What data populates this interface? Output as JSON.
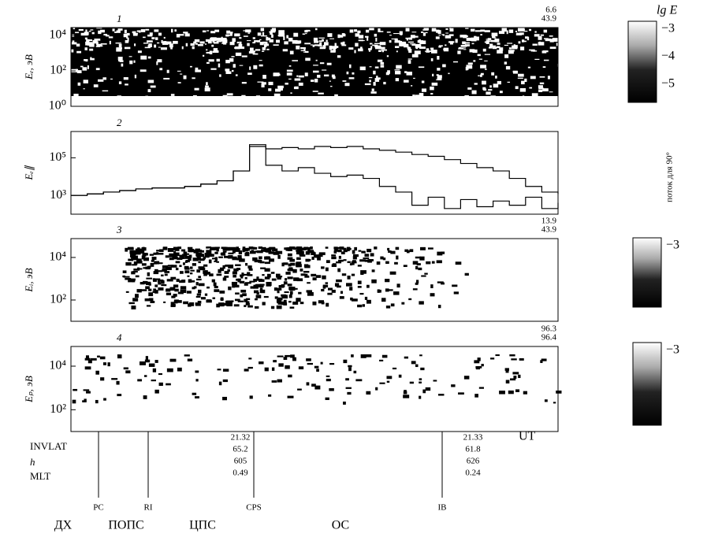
{
  "figure": {
    "panels": [
      {
        "number": "1",
        "ylabel": "Eₑ, эВ",
        "corner": [
          "6.6",
          "43.9"
        ],
        "log": true,
        "ylim": [
          1,
          28000
        ],
        "yticks": [
          {
            "value": 10000,
            "label": "10⁴"
          },
          {
            "value": 100,
            "label": "10²"
          },
          {
            "value": 1,
            "label": "10⁰"
          }
        ]
      },
      {
        "number": "2",
        "ylabel": "Eₑ∥",
        "log": true,
        "ylim": [
          100,
          2500000
        ],
        "yticks": [
          {
            "value": 100000,
            "label": "10⁵"
          },
          {
            "value": 1000,
            "label": "10³"
          }
        ],
        "series": [
          {
            "color": "#000000",
            "values": [
              1000,
              1200,
              1500,
              1800,
              2200,
              2500,
              2500,
              3000,
              4000,
              6000,
              20000,
              500000,
              300000,
              350000,
              300000,
              400000,
              350000,
              400000,
              300000,
              250000,
              200000,
              150000,
              120000,
              80000,
              50000,
              30000,
              20000,
              8000,
              3000,
              1500,
              1200
            ]
          },
          {
            "color": "#000000",
            "values": [
              1000,
              1200,
              1500,
              1800,
              2200,
              2500,
              2500,
              3000,
              4000,
              6000,
              20000,
              400000,
              40000,
              20000,
              30000,
              15000,
              10000,
              12000,
              8000,
              3000,
              1500,
              300,
              800,
              200,
              600,
              250,
              500,
              300,
              800,
              200,
              400
            ]
          }
        ]
      },
      {
        "number": "3",
        "ylabel": "Eᵢ, эВ",
        "corner": [
          "13.9",
          "43.9"
        ],
        "log": true,
        "ylim": [
          10,
          77000
        ],
        "yticks": [
          {
            "value": 10000,
            "label": "10⁴"
          },
          {
            "value": 100,
            "label": "10²"
          }
        ]
      },
      {
        "number": "4",
        "ylabel": "Eₚ, эВ",
        "corner": [
          "96.3",
          "96.4"
        ],
        "log": true,
        "ylim": [
          10,
          80000
        ],
        "yticks": [
          {
            "value": 10000,
            "label": "10⁴"
          },
          {
            "value": 100,
            "label": "10²"
          }
        ]
      }
    ],
    "colorbars": [
      {
        "title": "lg E",
        "labels": [
          "−3",
          "−4",
          "−5"
        ]
      },
      {
        "labels": [
          "−3"
        ]
      },
      {
        "labels": [
          "−3"
        ]
      }
    ],
    "side_label": "поток для 90°",
    "ephemeris": {
      "rows": [
        "INVLAT",
        "h",
        "MLT"
      ],
      "columns": [
        [
          "21.32",
          "65.2",
          "605",
          "0.49"
        ],
        [
          "21.33",
          "61.8",
          "626",
          "0.24"
        ]
      ],
      "ut_label": "UT"
    },
    "boundaries": [
      "PC",
      "RI",
      "CPS",
      "IB"
    ],
    "regions": [
      "ДХ",
      "ПОПС",
      "ЦПС",
      "ОС"
    ]
  }
}
